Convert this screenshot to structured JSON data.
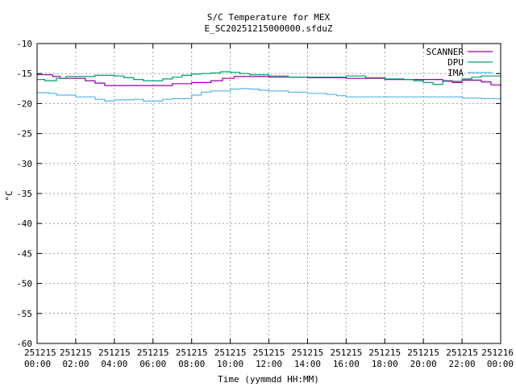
{
  "chart_data": {
    "type": "line",
    "title": "S/C Temperature for MEX",
    "subtitle": "E_SC20251215000000.sfduZ",
    "xlabel": "Time (yymmdd HH:MM)",
    "ylabel": "°C",
    "xlim": [
      0,
      24
    ],
    "ylim": [
      -60,
      -10
    ],
    "grid": true,
    "legend_position": "top-right",
    "x_ticks": [
      {
        "value": 0,
        "date": "251215",
        "time": "00:00"
      },
      {
        "value": 2,
        "date": "251215",
        "time": "02:00"
      },
      {
        "value": 4,
        "date": "251215",
        "time": "04:00"
      },
      {
        "value": 6,
        "date": "251215",
        "time": "06:00"
      },
      {
        "value": 8,
        "date": "251215",
        "time": "08:00"
      },
      {
        "value": 10,
        "date": "251215",
        "time": "10:00"
      },
      {
        "value": 12,
        "date": "251215",
        "time": "12:00"
      },
      {
        "value": 14,
        "date": "251215",
        "time": "14:00"
      },
      {
        "value": 16,
        "date": "251215",
        "time": "16:00"
      },
      {
        "value": 18,
        "date": "251215",
        "time": "18:00"
      },
      {
        "value": 20,
        "date": "251215",
        "time": "20:00"
      },
      {
        "value": 22,
        "date": "251215",
        "time": "22:00"
      },
      {
        "value": 24,
        "date": "251216",
        "time": "00:00"
      }
    ],
    "y_ticks": [
      -10,
      -15,
      -20,
      -25,
      -30,
      -35,
      -40,
      -45,
      -50,
      -55,
      -60
    ],
    "series": [
      {
        "name": "SCANNER",
        "color": "#9400a8",
        "x": [
          0,
          0.8,
          1.2,
          2.5,
          3.0,
          3.5,
          6.0,
          7.0,
          8.0,
          9.0,
          9.6,
          10.2,
          11.0,
          12.0,
          14.0,
          16.0,
          17.5,
          18.0,
          20.0,
          21.0,
          21.5,
          22.0,
          22.5,
          23.0,
          23.5,
          24.0
        ],
        "y": [
          -15.2,
          -15.5,
          -15.8,
          -16.2,
          -16.6,
          -17.0,
          -17.0,
          -16.7,
          -16.5,
          -16.2,
          -15.8,
          -15.5,
          -15.5,
          -15.6,
          -15.7,
          -15.8,
          -15.8,
          -16.0,
          -16.0,
          -16.2,
          -16.5,
          -16.1,
          -16.1,
          -16.4,
          -16.9,
          -17.2
        ]
      },
      {
        "name": "DPU",
        "color": "#009e73",
        "x": [
          0,
          0.4,
          1.0,
          1.5,
          3.0,
          4.0,
          4.5,
          5.0,
          5.5,
          6.0,
          6.5,
          7.0,
          7.5,
          8.0,
          8.5,
          9.0,
          9.5,
          10.0,
          10.5,
          11.0,
          12.0,
          13.0,
          14.0,
          16.0,
          17.0,
          18.0,
          19.0,
          19.5,
          20.0,
          20.5,
          21.0,
          22.0,
          22.5,
          23.0,
          24.0
        ],
        "y": [
          -16.0,
          -16.2,
          -15.8,
          -15.5,
          -15.3,
          -15.4,
          -15.7,
          -16.0,
          -16.2,
          -16.2,
          -15.9,
          -15.6,
          -15.3,
          -15.1,
          -15.0,
          -14.9,
          -14.7,
          -14.8,
          -15.0,
          -15.2,
          -15.4,
          -15.6,
          -15.6,
          -15.4,
          -15.7,
          -15.9,
          -16.0,
          -16.2,
          -16.5,
          -16.8,
          -16.3,
          -15.9,
          -15.6,
          -15.4,
          -15.3
        ]
      },
      {
        "name": "IMA",
        "color": "#56b4e9",
        "x": [
          0,
          0.6,
          1.0,
          2.0,
          3.0,
          3.5,
          4.0,
          5.0,
          5.5,
          6.0,
          6.5,
          7.0,
          8.0,
          8.5,
          9.0,
          10.0,
          10.5,
          11.0,
          11.5,
          12.0,
          13.0,
          14.0,
          15.0,
          15.5,
          16.0,
          18.0,
          20.0,
          22.0,
          23.0,
          24.0
        ],
        "y": [
          -18.2,
          -18.3,
          -18.6,
          -18.9,
          -19.3,
          -19.6,
          -19.4,
          -19.3,
          -19.6,
          -19.6,
          -19.3,
          -19.2,
          -18.6,
          -18.1,
          -17.9,
          -17.6,
          -17.5,
          -17.6,
          -17.8,
          -17.9,
          -18.1,
          -18.3,
          -18.5,
          -18.7,
          -18.9,
          -18.9,
          -18.9,
          -19.1,
          -19.2,
          -19.4
        ]
      }
    ]
  }
}
